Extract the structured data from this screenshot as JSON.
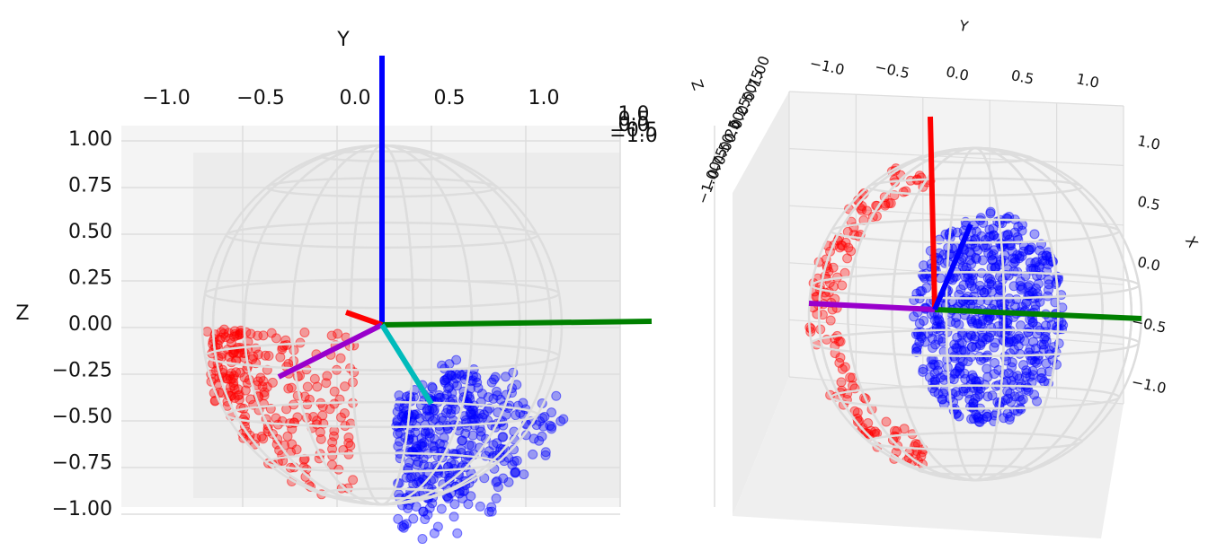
{
  "chart_data": [
    {
      "type": "scatter3d",
      "ylabel": "Y",
      "zlabel": "Z",
      "yticks": [
        {
          "value": -1,
          "label": "−1.0"
        },
        {
          "value": -0.5,
          "label": "−0.5"
        },
        {
          "value": 0,
          "label": "0.0"
        },
        {
          "value": 0.5,
          "label": "0.5"
        },
        {
          "value": 1,
          "label": "1.0"
        }
      ],
      "xticks": [
        {
          "value": -1,
          "label": "−1.0"
        },
        {
          "value": -0.5,
          "label": "−0.5"
        },
        {
          "value": 0,
          "label": "0.0"
        },
        {
          "value": 0.5,
          "label": "0.5"
        },
        {
          "value": 1,
          "label": "1.0"
        }
      ],
      "zticks": [
        {
          "value": 1,
          "label": "1.00"
        },
        {
          "value": 0.75,
          "label": "0.75"
        },
        {
          "value": 0.5,
          "label": "0.50"
        },
        {
          "value": 0.25,
          "label": "0.25"
        },
        {
          "value": 0,
          "label": "0.00"
        },
        {
          "value": -0.25,
          "label": "−0.25"
        },
        {
          "value": -0.5,
          "label": "−0.50"
        },
        {
          "value": -0.75,
          "label": "−0.75"
        },
        {
          "value": -1,
          "label": "−1.00"
        }
      ]
    },
    {
      "type": "scatter3d",
      "xlabel": "X",
      "ylabel": "Y",
      "zlabel": "Z",
      "yticks": [
        {
          "value": -1,
          "label": "−1.0"
        },
        {
          "value": -0.5,
          "label": "−0.5"
        },
        {
          "value": 0,
          "label": "0.0"
        },
        {
          "value": 0.5,
          "label": "0.5"
        },
        {
          "value": 1,
          "label": "1.0"
        }
      ],
      "xticks": [
        {
          "value": 1,
          "label": "1.0"
        },
        {
          "value": 0.5,
          "label": "0.5"
        },
        {
          "value": 0,
          "label": "0.0"
        },
        {
          "value": -0.5,
          "label": "−0.5"
        },
        {
          "value": -1,
          "label": "−1.0"
        }
      ],
      "zticks": [
        {
          "value": 1,
          "label": "1.00"
        },
        {
          "value": 0.75,
          "label": "0.75"
        },
        {
          "value": 0.5,
          "label": "0.50"
        },
        {
          "value": 0.25,
          "label": "0.25"
        },
        {
          "value": 0,
          "label": "0.00"
        },
        {
          "value": -0.25,
          "label": "−0.25"
        },
        {
          "value": -0.5,
          "label": "−0.50"
        },
        {
          "value": -0.75,
          "label": "−0.75"
        },
        {
          "value": -1,
          "label": "−1.00"
        }
      ]
    }
  ]
}
